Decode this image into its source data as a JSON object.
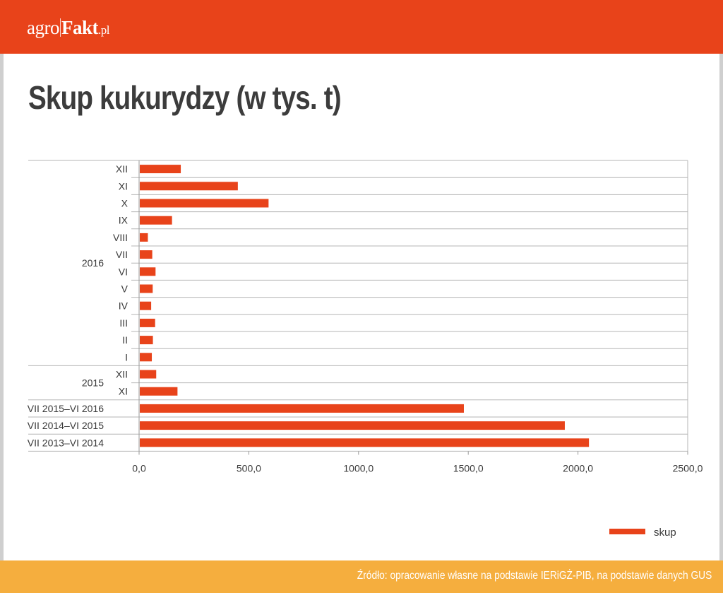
{
  "header": {
    "logo_agro": "agro",
    "logo_fakt": "Fakt",
    "logo_tld": ".pl"
  },
  "title": "Skup kukurydzy (w tys. t)",
  "footer": {
    "source": "Źródło: opracowanie własne na podstawie IERiGŻ-PIB, na podstawie danych GUS"
  },
  "colors": {
    "brand": "#e8431a",
    "bar": "#e8431a",
    "footer": "#f5ae3e",
    "title": "#3c3c3c"
  },
  "chart_data": {
    "type": "bar",
    "orientation": "horizontal",
    "title": "Skup kukurydzy (w tys. t)",
    "categories": [
      "XII",
      "XI",
      "X",
      "IX",
      "VIII",
      "VII",
      "VI",
      "V",
      "IV",
      "III",
      "II",
      "I",
      "XII",
      "XI",
      "VII 2015–VI 2016",
      "VII 2014–VI 2015",
      "VII 2013–VI 2014"
    ],
    "groups": [
      {
        "label": "2016",
        "start": 0,
        "end": 11
      },
      {
        "label": "2015",
        "start": 12,
        "end": 13
      }
    ],
    "series": [
      {
        "name": "skup",
        "values": [
          190,
          450,
          590,
          150,
          40,
          60,
          75,
          62,
          55,
          73,
          63,
          58,
          78,
          175,
          1480,
          1940,
          2050
        ]
      }
    ],
    "xlim": [
      0,
      2500
    ],
    "xticks": [
      "0,0",
      "500,0",
      "1000,0",
      "1500,0",
      "2000,0",
      "2500,0"
    ],
    "xtick_values": [
      0,
      500,
      1000,
      1500,
      2000,
      2500
    ],
    "legend": "bottom-right",
    "grid": true
  }
}
